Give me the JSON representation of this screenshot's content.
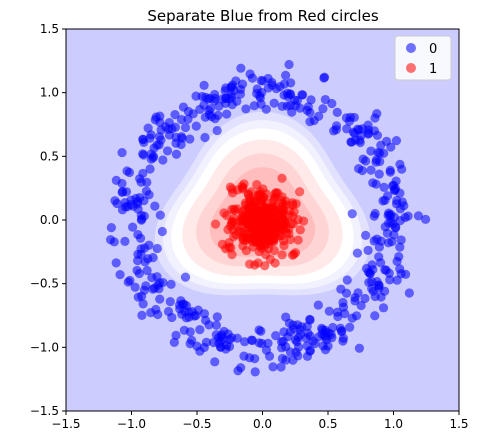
{
  "chart_data": {
    "type": "scatter",
    "title": "Separate Blue from Red circles",
    "xlabel": "",
    "ylabel": "",
    "xlim": [
      -1.5,
      1.5
    ],
    "ylim": [
      -1.5,
      1.5
    ],
    "xticks": [
      "−1.5",
      "−1.0",
      "−0.5",
      "0.0",
      "0.5",
      "1.0",
      "1.5"
    ],
    "yticks": [
      "−1.5",
      "−1.0",
      "−0.5",
      "0.0",
      "0.5",
      "1.0",
      "1.5"
    ],
    "legend": {
      "placement": "top-right",
      "entries": [
        {
          "label": "0",
          "color": "#0000ff"
        },
        {
          "label": "1",
          "color": "#ff0000"
        }
      ]
    },
    "background_color": "#ccccff",
    "decision_contour": {
      "description_visible": false,
      "levels": [
        {
          "r": 0.78,
          "color": "#e2e2ff"
        },
        {
          "r": 0.72,
          "color": "#f2f2ff"
        },
        {
          "r": 0.66,
          "color": "#ffffff"
        },
        {
          "r": 0.58,
          "color": "#ffe9e9"
        },
        {
          "r": 0.48,
          "color": "#ffd4d4"
        },
        {
          "r": 0.38,
          "color": "#ffbdbd"
        }
      ],
      "center": [
        0.0,
        0.0
      ]
    },
    "series": [
      {
        "name": "0",
        "color": "#0000ff",
        "shape": "ring",
        "center": [
          0.0,
          0.0
        ],
        "radius_range": [
          0.85,
          1.25
        ],
        "count": 500
      },
      {
        "name": "1",
        "color": "#ff0000",
        "shape": "blob",
        "center": [
          0.0,
          0.0
        ],
        "spread_range": [
          0.0,
          0.36
        ],
        "count": 500
      }
    ]
  }
}
